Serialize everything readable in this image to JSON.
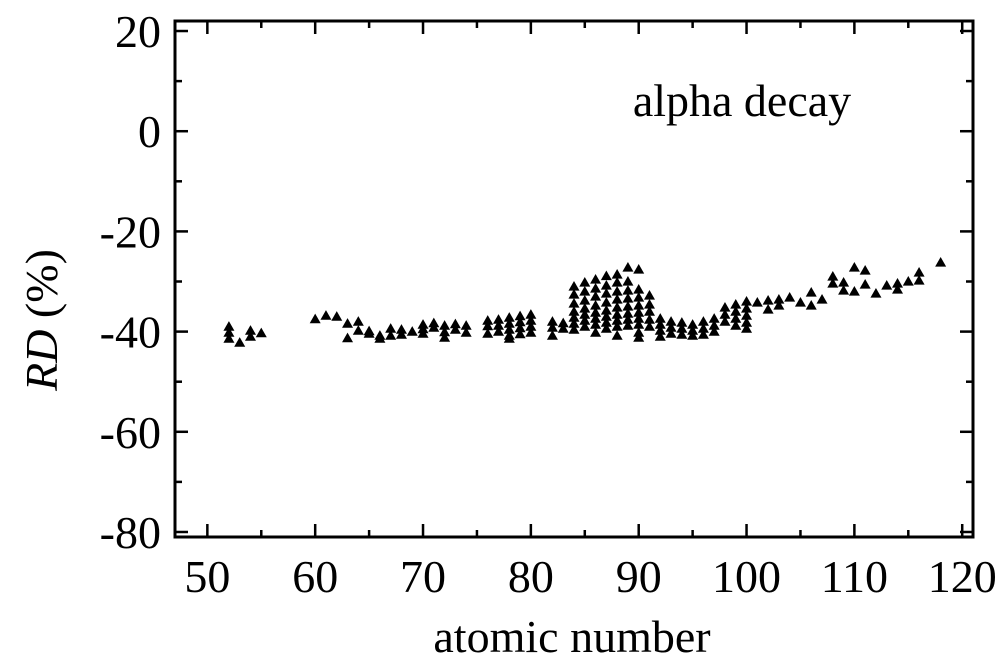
{
  "chart_data": {
    "type": "scatter",
    "xlabel": "atomic number",
    "ylabel_italic": "RD",
    "ylabel_rest": " (%)",
    "annotation": "alpha decay",
    "xlim": [
      47,
      121
    ],
    "ylim": [
      -81,
      22
    ],
    "xticks": [
      50,
      60,
      70,
      80,
      90,
      100,
      110,
      120
    ],
    "yticks": [
      20,
      0,
      -20,
      -40,
      -60,
      -80
    ],
    "xtick_labels": [
      "50",
      "60",
      "70",
      "80",
      "90",
      "100",
      "110",
      "120"
    ],
    "ytick_labels": [
      "20",
      "0",
      "-20",
      "-40",
      "-60",
      "-80"
    ],
    "marker": "filled-triangle",
    "marker_color": "#000000",
    "grid": false,
    "series": [
      {
        "points": [
          [
            52,
            -39.0
          ],
          [
            52,
            -40.2
          ],
          [
            52,
            -41.4
          ],
          [
            53,
            -42.2
          ],
          [
            54,
            -41.0
          ],
          [
            54,
            -39.8
          ],
          [
            55,
            -40.3
          ],
          [
            60,
            -37.5
          ],
          [
            61,
            -36.8
          ],
          [
            62,
            -37.0
          ],
          [
            63,
            -38.4
          ],
          [
            63,
            -41.3
          ],
          [
            64,
            -38.0
          ],
          [
            64,
            -39.8
          ],
          [
            65,
            -39.9
          ],
          [
            65,
            -40.4
          ],
          [
            66,
            -40.8
          ],
          [
            66,
            -41.4
          ],
          [
            67,
            -39.4
          ],
          [
            67,
            -40.8
          ],
          [
            68,
            -39.6
          ],
          [
            68,
            -40.6
          ],
          [
            69,
            -40.0
          ],
          [
            70,
            -38.6
          ],
          [
            70,
            -39.5
          ],
          [
            70,
            -40.4
          ],
          [
            71,
            -38.3
          ],
          [
            71,
            -39.2
          ],
          [
            72,
            -38.8
          ],
          [
            72,
            -40.1
          ],
          [
            72,
            -41.2
          ],
          [
            73,
            -38.5
          ],
          [
            73,
            -39.6
          ],
          [
            74,
            -38.8
          ],
          [
            74,
            -40.2
          ],
          [
            76,
            -37.8
          ],
          [
            76,
            -38.9
          ],
          [
            76,
            -40.4
          ],
          [
            77,
            -37.6
          ],
          [
            77,
            -38.8
          ],
          [
            77,
            -40.0
          ],
          [
            78,
            -37.2
          ],
          [
            78,
            -38.4
          ],
          [
            78,
            -39.6
          ],
          [
            78,
            -40.8
          ],
          [
            78,
            -41.4
          ],
          [
            79,
            -36.9
          ],
          [
            79,
            -38.1
          ],
          [
            79,
            -39.3
          ],
          [
            79,
            -40.5
          ],
          [
            80,
            -36.6
          ],
          [
            80,
            -37.8
          ],
          [
            80,
            -39.0
          ],
          [
            80,
            -40.2
          ],
          [
            82,
            -38.0
          ],
          [
            82,
            -39.2
          ],
          [
            82,
            -40.8
          ],
          [
            83,
            -38.3
          ],
          [
            83,
            -39.4
          ],
          [
            84,
            -31.0
          ],
          [
            84,
            -32.6
          ],
          [
            84,
            -34.4
          ],
          [
            84,
            -36.0
          ],
          [
            84,
            -37.2
          ],
          [
            84,
            -38.4
          ],
          [
            84,
            -39.6
          ],
          [
            85,
            -30.2
          ],
          [
            85,
            -32.0
          ],
          [
            85,
            -33.8
          ],
          [
            85,
            -35.4
          ],
          [
            85,
            -36.6
          ],
          [
            85,
            -37.8
          ],
          [
            85,
            -39.0
          ],
          [
            86,
            -29.6
          ],
          [
            86,
            -31.4
          ],
          [
            86,
            -33.0
          ],
          [
            86,
            -34.8
          ],
          [
            86,
            -36.2
          ],
          [
            86,
            -37.4
          ],
          [
            86,
            -38.6
          ],
          [
            86,
            -40.2
          ],
          [
            87,
            -28.9
          ],
          [
            87,
            -30.8
          ],
          [
            87,
            -32.4
          ],
          [
            87,
            -34.2
          ],
          [
            87,
            -35.8
          ],
          [
            87,
            -37.0
          ],
          [
            87,
            -38.2
          ],
          [
            87,
            -39.4
          ],
          [
            88,
            -28.6
          ],
          [
            88,
            -30.2
          ],
          [
            88,
            -32.0
          ],
          [
            88,
            -33.6
          ],
          [
            88,
            -35.2
          ],
          [
            88,
            -36.6
          ],
          [
            88,
            -37.8
          ],
          [
            88,
            -39.0
          ],
          [
            88,
            -40.8
          ],
          [
            89,
            -27.2
          ],
          [
            89,
            -30.0
          ],
          [
            89,
            -31.8
          ],
          [
            89,
            -33.4
          ],
          [
            89,
            -35.0
          ],
          [
            89,
            -36.4
          ],
          [
            89,
            -37.6
          ],
          [
            89,
            -38.8
          ],
          [
            90,
            -27.6
          ],
          [
            90,
            -31.6
          ],
          [
            90,
            -33.2
          ],
          [
            90,
            -34.8
          ],
          [
            90,
            -36.2
          ],
          [
            90,
            -37.4
          ],
          [
            90,
            -38.6
          ],
          [
            90,
            -40.2
          ],
          [
            90,
            -41.2
          ],
          [
            91,
            -32.8
          ],
          [
            91,
            -34.6
          ],
          [
            91,
            -36.0
          ],
          [
            91,
            -37.6
          ],
          [
            91,
            -39.0
          ],
          [
            92,
            -37.4
          ],
          [
            92,
            -38.6
          ],
          [
            92,
            -39.8
          ],
          [
            92,
            -41.0
          ],
          [
            93,
            -38.0
          ],
          [
            93,
            -39.2
          ],
          [
            93,
            -40.4
          ],
          [
            94,
            -38.2
          ],
          [
            94,
            -39.4
          ],
          [
            94,
            -40.6
          ],
          [
            95,
            -38.6
          ],
          [
            95,
            -39.8
          ],
          [
            95,
            -40.8
          ],
          [
            96,
            -38.0
          ],
          [
            96,
            -39.4
          ],
          [
            96,
            -40.6
          ],
          [
            97,
            -37.4
          ],
          [
            97,
            -38.8
          ],
          [
            97,
            -40.0
          ],
          [
            98,
            -35.2
          ],
          [
            98,
            -36.6
          ],
          [
            98,
            -38.0
          ],
          [
            99,
            -34.6
          ],
          [
            99,
            -36.0
          ],
          [
            99,
            -37.4
          ],
          [
            99,
            -38.8
          ],
          [
            100,
            -34.0
          ],
          [
            100,
            -35.4
          ],
          [
            100,
            -36.8
          ],
          [
            100,
            -38.2
          ],
          [
            100,
            -39.4
          ],
          [
            101,
            -34.2
          ],
          [
            102,
            -33.8
          ],
          [
            102,
            -35.6
          ],
          [
            103,
            -33.6
          ],
          [
            103,
            -34.8
          ],
          [
            104,
            -33.2
          ],
          [
            105,
            -34.2
          ],
          [
            106,
            -32.2
          ],
          [
            106,
            -34.8
          ],
          [
            107,
            -33.6
          ],
          [
            108,
            -29.0
          ],
          [
            108,
            -30.4
          ],
          [
            109,
            -30.2
          ],
          [
            109,
            -31.8
          ],
          [
            110,
            -27.2
          ],
          [
            110,
            -32.0
          ],
          [
            111,
            -27.8
          ],
          [
            111,
            -30.6
          ],
          [
            112,
            -32.4
          ],
          [
            113,
            -30.8
          ],
          [
            114,
            -30.4
          ],
          [
            114,
            -31.6
          ],
          [
            115,
            -30.0
          ],
          [
            116,
            -28.2
          ],
          [
            116,
            -29.8
          ],
          [
            118,
            -26.2
          ]
        ]
      }
    ]
  }
}
